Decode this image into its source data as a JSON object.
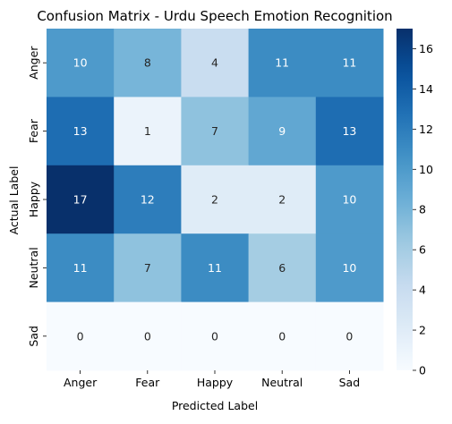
{
  "chart_data": {
    "type": "heatmap",
    "title": "Confusion Matrix - Urdu Speech Emotion Recognition",
    "xlabel": "Predicted Label",
    "ylabel": "Actual Label",
    "x_categories": [
      "Anger",
      "Fear",
      "Happy",
      "Neutral",
      "Sad"
    ],
    "y_categories": [
      "Anger",
      "Fear",
      "Happy",
      "Neutral",
      "Sad"
    ],
    "values": [
      [
        10,
        8,
        4,
        11,
        11
      ],
      [
        13,
        1,
        7,
        9,
        13
      ],
      [
        17,
        12,
        2,
        2,
        10
      ],
      [
        11,
        7,
        11,
        6,
        10
      ],
      [
        0,
        0,
        0,
        0,
        0
      ]
    ],
    "colorbar": {
      "colormap": "Blues",
      "min": 0,
      "max": 17,
      "ticks": [
        0,
        2,
        4,
        6,
        8,
        10,
        12,
        14,
        16
      ]
    },
    "annotations": true
  }
}
